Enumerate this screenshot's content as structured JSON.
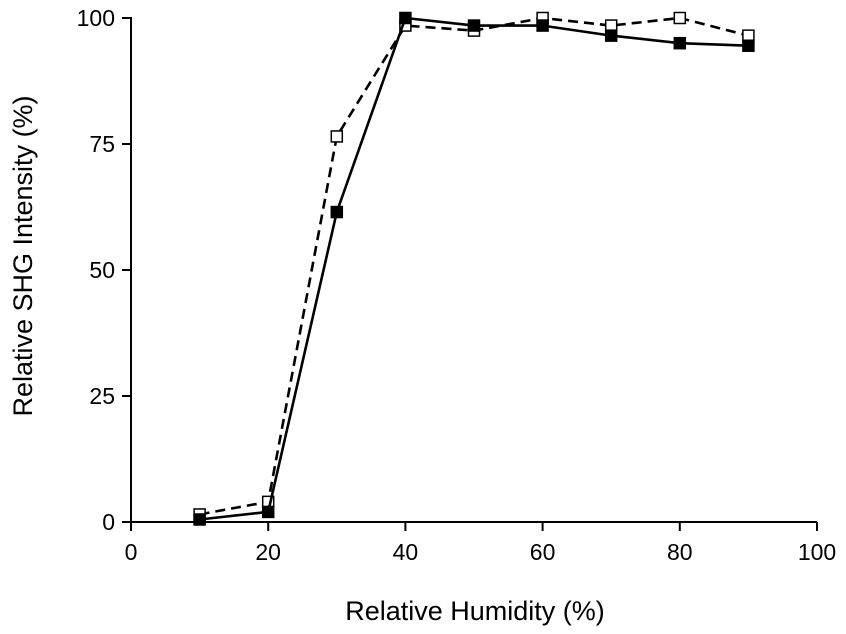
{
  "chart_data": {
    "type": "line",
    "xlabel": "Relative Humidity (%)",
    "ylabel": "Relative SHG Intensity (%)",
    "xlim": [
      0,
      100
    ],
    "ylim": [
      0,
      100
    ],
    "x_ticks": [
      0,
      20,
      40,
      60,
      80,
      100
    ],
    "y_ticks": [
      0,
      25,
      50,
      75,
      100
    ],
    "grid": false,
    "legend": "none",
    "series": [
      {
        "line_style": "solid",
        "marker": "filled-square",
        "color": "#000000",
        "x": [
          10,
          20,
          30,
          40,
          50,
          60,
          70,
          80,
          90
        ],
        "y": [
          0.5,
          2,
          61.5,
          100,
          98.5,
          98.5,
          96.5,
          95,
          94.5
        ]
      },
      {
        "line_style": "dashed",
        "marker": "open-square",
        "color": "#000000",
        "x": [
          10,
          20,
          30,
          40,
          50,
          60,
          70,
          80,
          90
        ],
        "y": [
          1.5,
          4,
          76.5,
          98.5,
          97.5,
          100,
          98.5,
          100,
          96.5
        ]
      }
    ]
  }
}
